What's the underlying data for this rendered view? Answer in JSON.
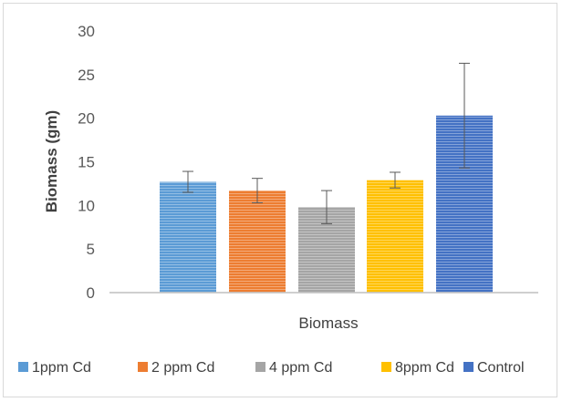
{
  "chart_data": {
    "type": "bar",
    "title": "",
    "xlabel": "Biomass",
    "ylabel": "Biomass (gm)",
    "ylim": [
      0,
      30
    ],
    "yticks": [
      0,
      5,
      10,
      15,
      20,
      25,
      30
    ],
    "grid": false,
    "legend_position": "bottom",
    "series": [
      {
        "name": "1ppm Cd",
        "value": 12.7,
        "error": 1.2,
        "color": "#5b9bd5"
      },
      {
        "name": "2 ppm Cd",
        "value": 11.7,
        "error": 1.4,
        "color": "#ed7d31"
      },
      {
        "name": "4 ppm Cd",
        "value": 9.8,
        "error": 1.9,
        "color": "#a5a5a5"
      },
      {
        "name": "8ppm Cd",
        "value": 12.9,
        "error": 0.9,
        "color": "#ffc000"
      },
      {
        "name": "Control",
        "value": 20.3,
        "error": 6.0,
        "color": "#4472c4"
      }
    ]
  }
}
